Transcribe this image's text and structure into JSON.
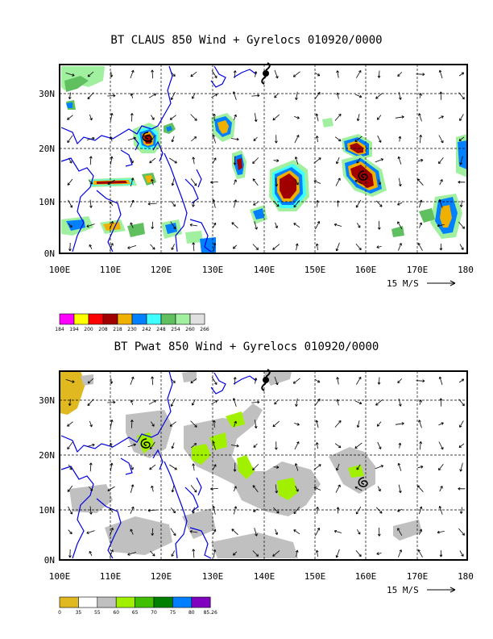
{
  "panel_top": {
    "title": "BT CLAUS 850 Wind + Gyrelocs 010920/0000",
    "lat_labels": [
      "30N",
      "20N",
      "10N",
      "0N"
    ],
    "lon_labels": [
      "100E",
      "110E",
      "120E",
      "130E",
      "140E",
      "150E",
      "160E",
      "170E",
      "180"
    ],
    "vector_scale": "15 M/S",
    "legend": {
      "colors": [
        "#ff00ff",
        "#ffff00",
        "#ff0000",
        "#a00000",
        "#f0b000",
        "#0080ff",
        "#40ffff",
        "#60c060",
        "#a0f0a0",
        "#e0e0e0"
      ],
      "labels": [
        "184",
        "194",
        "200",
        "208",
        "218",
        "230",
        "242",
        "248",
        "254",
        "260",
        "266"
      ]
    }
  },
  "panel_bottom": {
    "title": "BT Pwat 850 Wind + Gyrelocs 010920/0000",
    "lat_labels": [
      "30N",
      "20N",
      "10N",
      "0N"
    ],
    "lon_labels": [
      "100E",
      "110E",
      "120E",
      "130E",
      "140E",
      "150E",
      "160E",
      "170E",
      "180"
    ],
    "vector_scale": "15 M/S",
    "legend": {
      "colors": [
        "#e0b820",
        "#ffffff",
        "#c0c0c0",
        "#a0f000",
        "#40c000",
        "#008000",
        "#0080ff",
        "#8000c0"
      ],
      "labels": [
        "0",
        "35",
        "55",
        "60",
        "65",
        "70",
        "75",
        "80",
        "85.26"
      ]
    }
  },
  "icons": [
    "typhoon-symbol-icon",
    "gyre-location-icon",
    "wind-vector-arrow-icon"
  ]
}
